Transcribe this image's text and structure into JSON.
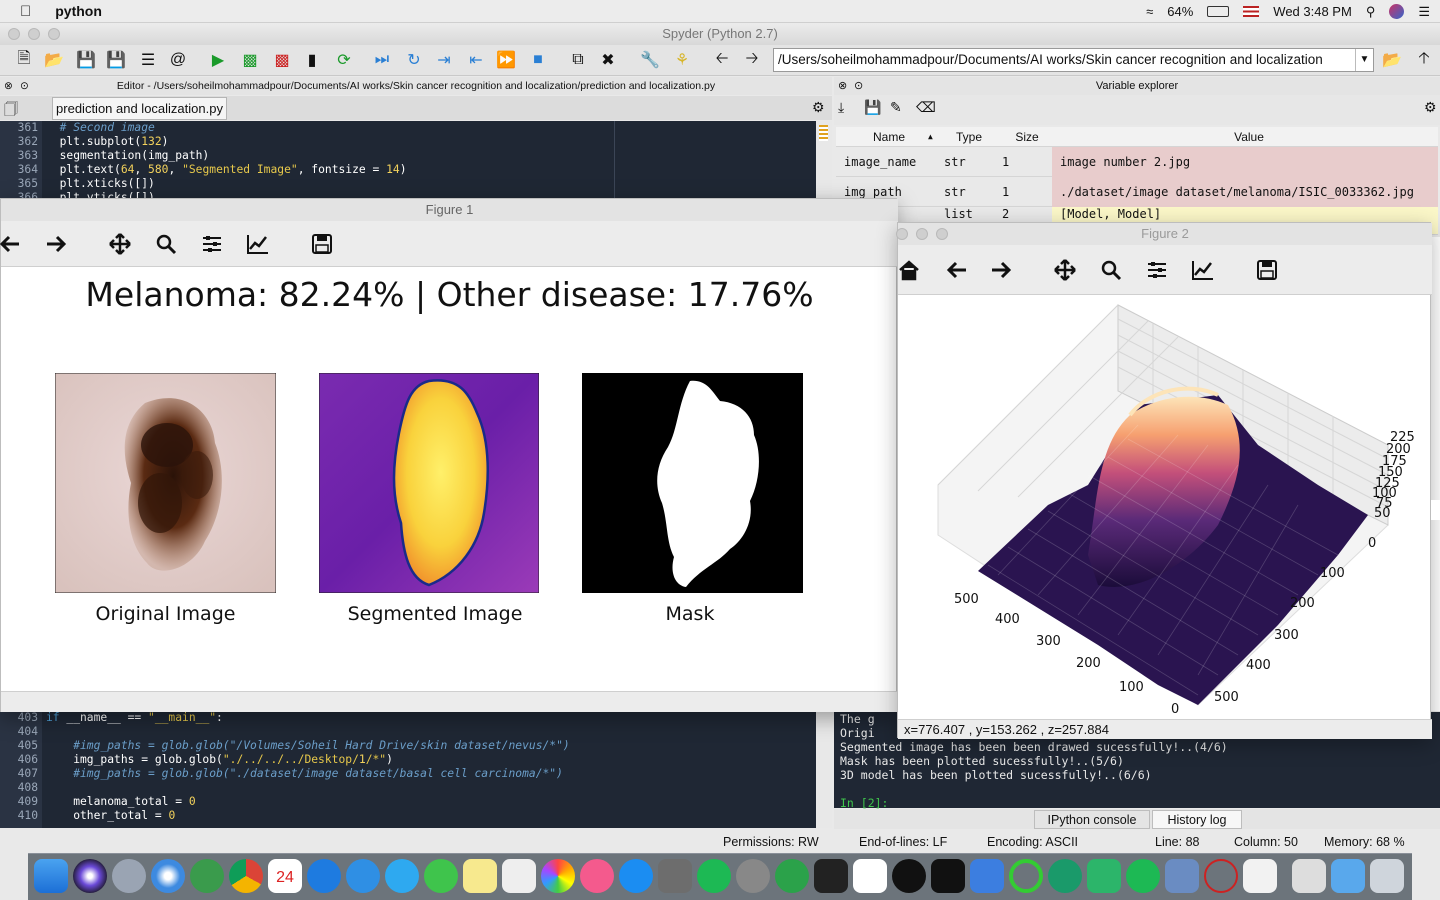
{
  "menubar": {
    "apple": "",
    "app_name": "python",
    "battery": "64%",
    "clock": "Wed 3:48 PM"
  },
  "window_title": "Spyder (Python 2.7)",
  "path_field": "/Users/soheilmohammadpour/Documents/AI works/Skin cancer recognition and localization",
  "editor": {
    "header": "Editor - /Users/soheilmohammadpour/Documents/AI works/Skin cancer recognition and localization/prediction and localization.py",
    "tab": "prediction and localization.py",
    "top_lines": [
      {
        "n": "361",
        "code": "  # Second image"
      },
      {
        "n": "362",
        "code": "  plt.subplot(132)"
      },
      {
        "n": "363",
        "code": "  segmentation(img_path)"
      },
      {
        "n": "364",
        "code": "  plt.text(64, 580, \"Segmented Image\", fontsize = 14)"
      },
      {
        "n": "365",
        "code": "  plt.xticks([])"
      },
      {
        "n": "366",
        "code": "  plt.yticks([])"
      }
    ],
    "bottom_lines": [
      {
        "n": "403",
        "code": "if __name__ == \"__main__\":"
      },
      {
        "n": "404",
        "code": ""
      },
      {
        "n": "405",
        "code": "    #img_paths = glob.glob(\"/Volumes/Soheil Hard Drive/skin dataset/nevus/*\")"
      },
      {
        "n": "406",
        "code": "    img_paths = glob.glob(\"./../../../Desktop/1/*\")"
      },
      {
        "n": "407",
        "code": "    #img_paths = glob.glob(\"./dataset/image dataset/basal cell carcinoma/*\")"
      },
      {
        "n": "408",
        "code": ""
      },
      {
        "n": "409",
        "code": "    melanoma_total = 0"
      },
      {
        "n": "410",
        "code": "    other_total = 0"
      }
    ]
  },
  "variable_explorer": {
    "header": "Variable explorer",
    "columns": [
      "Name",
      "Type",
      "Size",
      "Value"
    ],
    "rows": [
      {
        "name": "image_name",
        "type": "str",
        "size": "1",
        "value": "image number 2.jpg"
      },
      {
        "name": "img_path",
        "type": "str",
        "size": "1",
        "value": "./dataset/image dataset/melanoma/ISIC_0033362.jpg"
      },
      {
        "name": "",
        "type": "list",
        "size": "2",
        "value": "[Model, Model]"
      }
    ]
  },
  "console": {
    "lines": [
      "The g",
      "Origi",
      "Segmented image has been been drawed sucessfully!..(4/6)",
      "Mask has been plotted sucessfully!..(5/6)",
      "3D model has been plotted sucessfully!..(6/6)",
      "",
      "In [2]:"
    ],
    "tabs": [
      "IPython console",
      "History log"
    ]
  },
  "status_bar": {
    "permissions": "Permissions:  RW",
    "eol": "End-of-lines:  LF",
    "encoding": "Encoding:  ASCII",
    "line": "Line:  88",
    "column": "Column:  50",
    "memory": "Memory:  68 %"
  },
  "figure1": {
    "title": "Figure 1",
    "suptitle": "Melanoma: 82.24% | Other disease: 17.76%",
    "panels": [
      "Original Image",
      "Segmented Image",
      "Mask"
    ]
  },
  "figure2": {
    "title": "Figure 2",
    "readout": "x=776.407     , y=153.262     , z=257.884",
    "z_ticks": [
      "225",
      "200",
      "175",
      "150",
      "125",
      "100",
      "75",
      "50"
    ],
    "x_ticks": [
      "500",
      "400",
      "300",
      "200",
      "100",
      "0"
    ],
    "y_ticks": [
      "0",
      "100",
      "200",
      "300",
      "400",
      "500"
    ]
  },
  "colors": {
    "editor_bg": "#1f2734",
    "highlight_row": "#e8cccc",
    "yellow_row": "#fbf7c8"
  }
}
